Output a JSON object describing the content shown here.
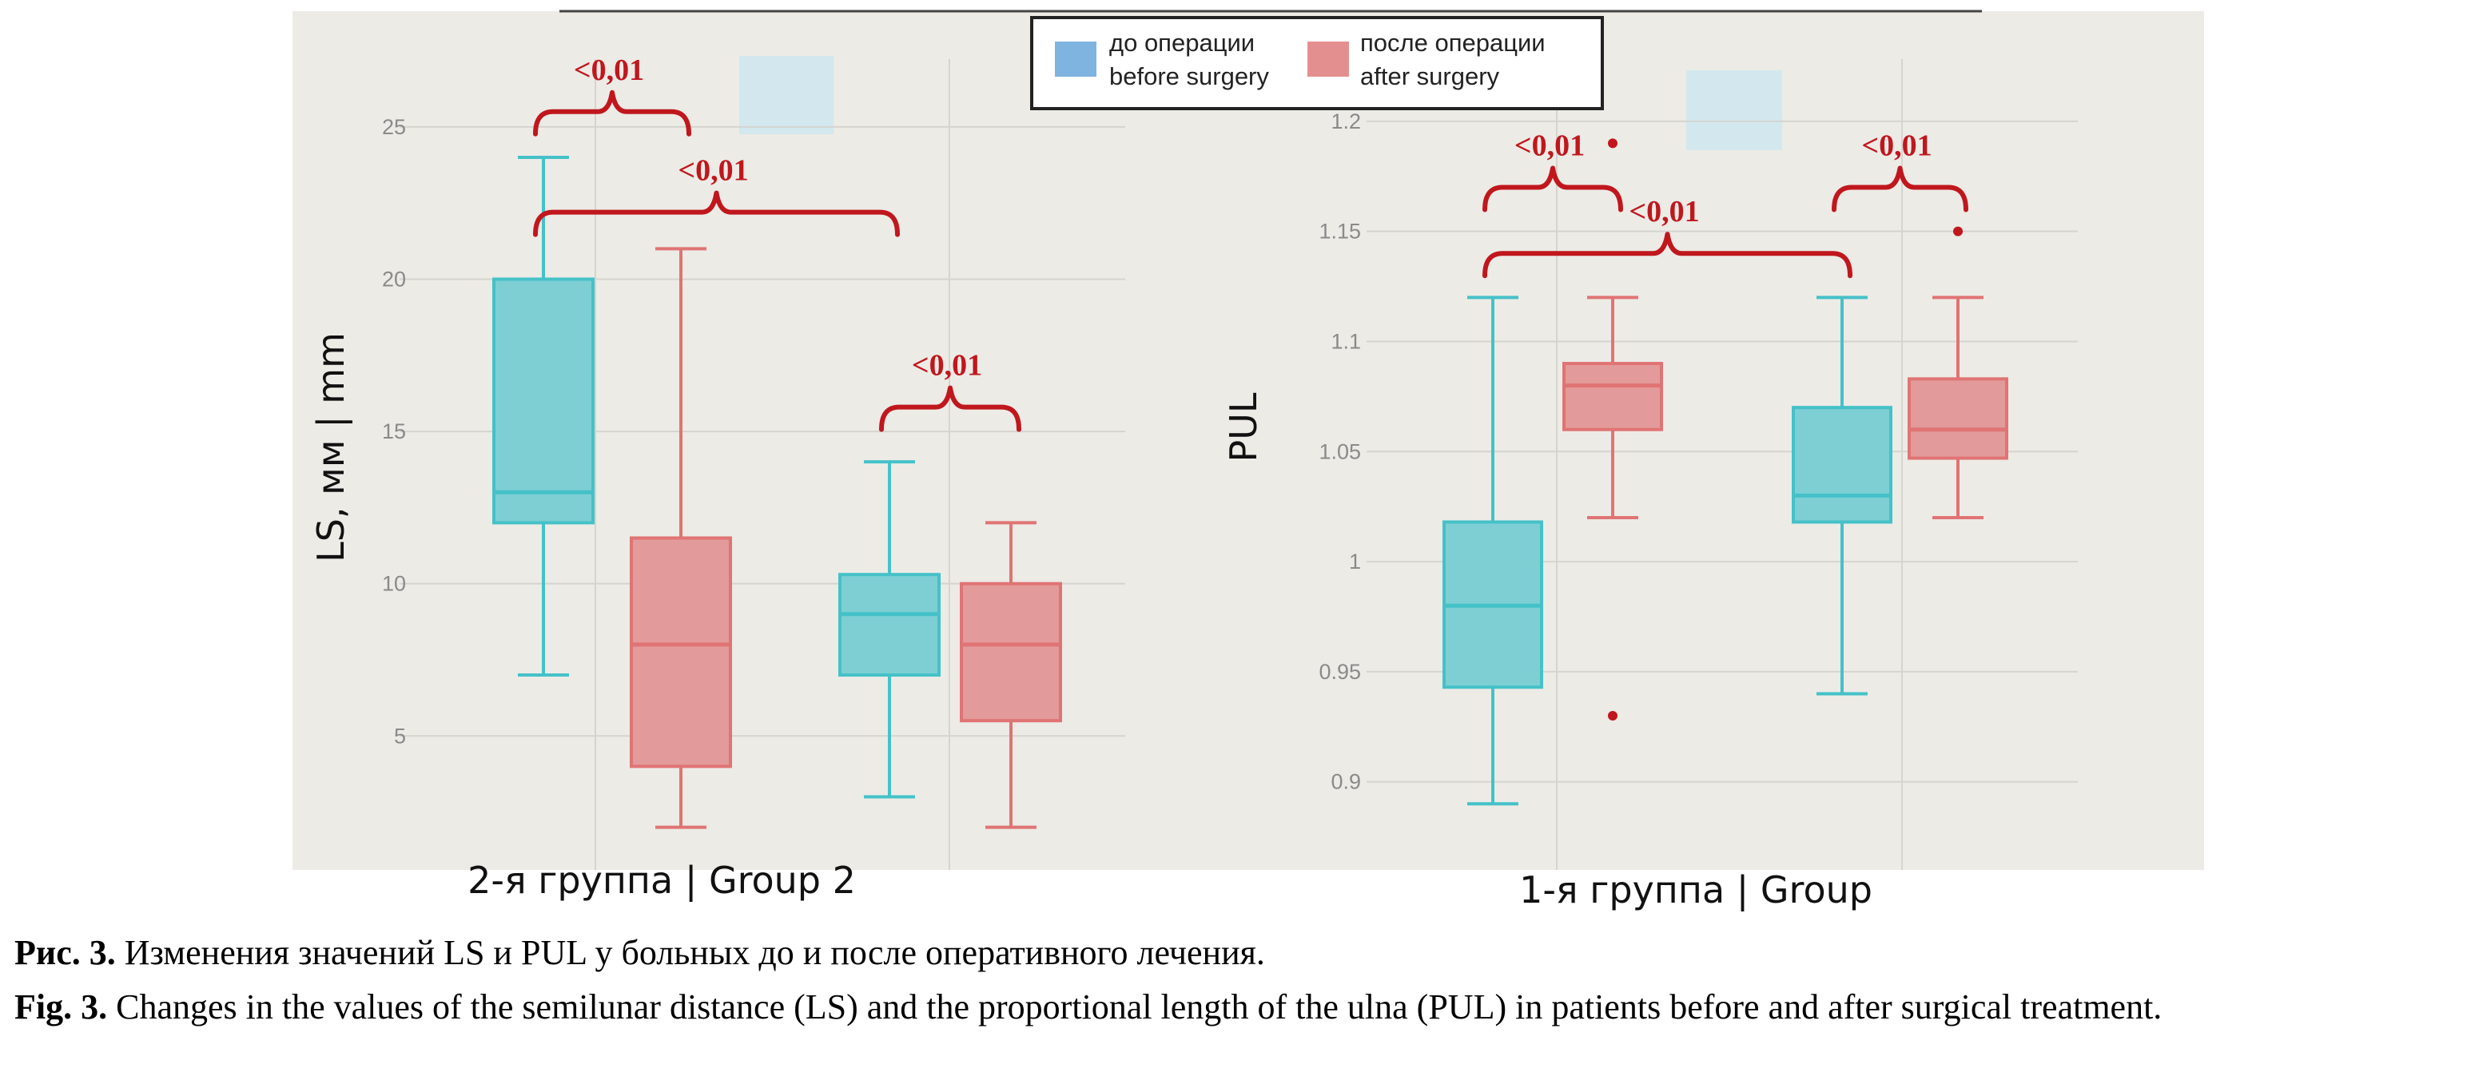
{
  "colors": {
    "panel_bg": "#ecebe6",
    "grid": "#d5d4cf",
    "tick": "#8a8a8a",
    "before_fill": "#7dcfd4",
    "before_stroke": "#45c1c8",
    "after_fill": "#e39a9a",
    "after_stroke": "#e07474",
    "bracket": "#c0171d",
    "legend_before_swatch": "#7fb3e0",
    "legend_after_swatch": "#e48f8f",
    "ghost_swatch": "#d2e8ee"
  },
  "legend": {
    "before_ru": "до операции",
    "before_en": "before surgery",
    "after_ru": "после операции",
    "after_en": "after surgery"
  },
  "caption": {
    "ru_label": "Рис. 3.",
    "ru_text": " Изменения значений LS и PUL у больных до и после оперативного лечения.",
    "en_label": "Fig. 3.",
    "en_text": " Changes in the values of the semilunar distance (LS) and the proportional length of the ulna (PUL) in patients before and after surgical treatment."
  },
  "chart_data": [
    {
      "type": "box",
      "id": "ls",
      "ylabel": "LS, мм | mm",
      "xlabel": "2-я группа | Group 2",
      "ylim": [
        0.6,
        28.8
      ],
      "yticks": [
        5,
        10,
        15,
        20,
        25
      ],
      "tick_labels": [
        "5",
        "10",
        "15",
        "20",
        "25"
      ],
      "groups": [
        {
          "name": "group-a",
          "boxes": [
            {
              "series": "before",
              "min": 7,
              "q1": 12,
              "median": 13,
              "q3": 20,
              "max": 24
            },
            {
              "series": "after",
              "min": 2,
              "q1": 4,
              "median": 8,
              "q3": 11.5,
              "max": 21
            }
          ]
        },
        {
          "name": "group-b",
          "boxes": [
            {
              "series": "before",
              "min": 3,
              "q1": 7,
              "median": 9,
              "q3": 10.3,
              "max": 14
            },
            {
              "series": "after",
              "min": 2,
              "q1": 5.5,
              "median": 8,
              "q3": 10,
              "max": 12
            }
          ]
        }
      ],
      "significance": [
        {
          "label": "<0,01",
          "from": [
            0,
            0
          ],
          "to": [
            0,
            1
          ],
          "level": 25.5
        },
        {
          "label": "<0,01",
          "from": [
            0,
            0
          ],
          "to": [
            1,
            0
          ],
          "level": 22.2
        },
        {
          "label": "<0,01",
          "from": [
            1,
            0
          ],
          "to": [
            1,
            1
          ],
          "level": 15.8
        }
      ]
    },
    {
      "type": "box",
      "id": "pul",
      "ylabel": "PUL",
      "xlabel": "1-я группа | Group",
      "ylim": [
        0.86,
        1.25
      ],
      "yticks": [
        0.9,
        0.95,
        1.0,
        1.05,
        1.1,
        1.15,
        1.2
      ],
      "tick_labels": [
        "0.9",
        "0.95",
        "1",
        "1.05",
        "1.1",
        "1.15",
        "1.2"
      ],
      "groups": [
        {
          "name": "group-a",
          "boxes": [
            {
              "series": "before",
              "min": 0.89,
              "q1": 0.943,
              "median": 0.98,
              "q3": 1.018,
              "max": 1.12,
              "outliers": []
            },
            {
              "series": "after",
              "min": 1.02,
              "q1": 1.06,
              "median": 1.08,
              "q3": 1.09,
              "max": 1.12,
              "outliers": [
                1.19,
                0.93
              ]
            }
          ]
        },
        {
          "name": "group-b",
          "boxes": [
            {
              "series": "before",
              "min": 0.94,
              "q1": 1.018,
              "median": 1.03,
              "q3": 1.07,
              "max": 1.12,
              "outliers": []
            },
            {
              "series": "after",
              "min": 1.02,
              "q1": 1.047,
              "median": 1.06,
              "q3": 1.083,
              "max": 1.12,
              "outliers": [
                1.15
              ]
            }
          ]
        }
      ],
      "significance": [
        {
          "label": "<0,01",
          "from": [
            0,
            0
          ],
          "to": [
            0,
            1
          ],
          "level": 1.17
        },
        {
          "label": "<0,01",
          "from": [
            0,
            0
          ],
          "to": [
            1,
            0
          ],
          "level": 1.14
        },
        {
          "label": "<0,01",
          "from": [
            1,
            0
          ],
          "to": [
            1,
            1
          ],
          "level": 1.17
        }
      ]
    }
  ]
}
